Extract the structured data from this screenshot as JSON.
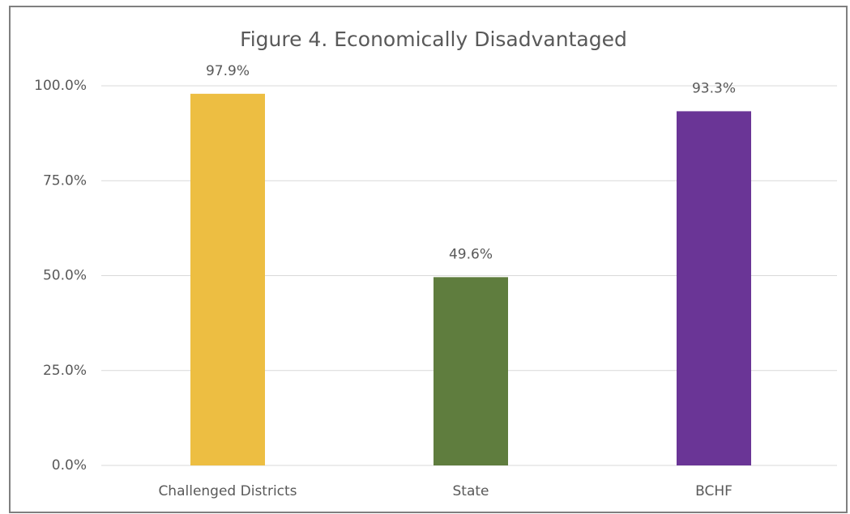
{
  "chart_data": {
    "type": "bar",
    "title": "Figure 4. Economically Disadvantaged",
    "categories": [
      "Challenged Districts",
      "State",
      "BCHF"
    ],
    "values": [
      97.9,
      49.6,
      93.3
    ],
    "value_labels": [
      "97.9%",
      "49.6%",
      "93.3%"
    ],
    "colors": [
      "#edbe42",
      "#5f7d3e",
      "#6a3596"
    ],
    "ylim": [
      0,
      100
    ],
    "yticks": [
      {
        "value": 0,
        "label": "0.0%"
      },
      {
        "value": 25,
        "label": "25.0%"
      },
      {
        "value": 50,
        "label": "50.0%"
      },
      {
        "value": 75,
        "label": "75.0%"
      },
      {
        "value": 100,
        "label": "100.0%"
      }
    ],
    "grid": true
  }
}
